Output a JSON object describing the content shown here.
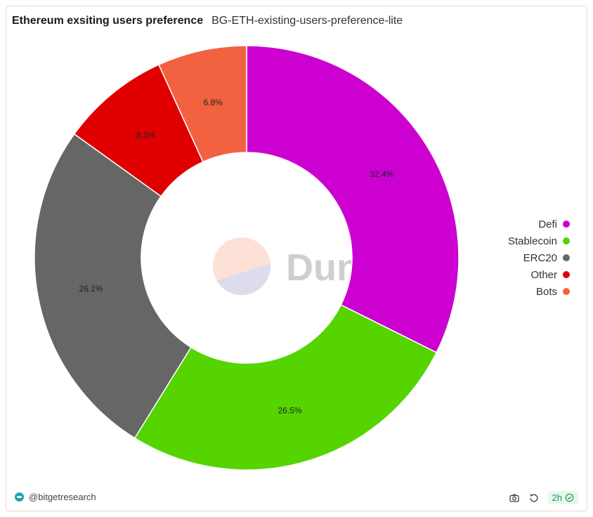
{
  "header": {
    "title": "Ethereum exsiting users preference",
    "subtitle": "BG-ETH-existing-users-preference-lite"
  },
  "chart_data": {
    "type": "pie",
    "variant": "donut",
    "start_angle_deg": 0,
    "direction": "clockwise",
    "categories": [
      "Defi",
      "Stablecoin",
      "ERC20",
      "Other",
      "Bots"
    ],
    "values": [
      32.4,
      26.5,
      26.1,
      8.3,
      6.8
    ],
    "labels": [
      "32.4%",
      "26.5%",
      "26.1%",
      "8.3%",
      "6.8%"
    ],
    "colors": [
      "#cc00d1",
      "#55d400",
      "#666666",
      "#e00000",
      "#f26240"
    ],
    "legend_position": "right"
  },
  "watermark": {
    "text": "Dune"
  },
  "footer": {
    "author": "@bitgetresearch",
    "refresh_badge": "2h",
    "icons": [
      "camera-icon",
      "refresh-icon",
      "check-circle-icon"
    ]
  }
}
